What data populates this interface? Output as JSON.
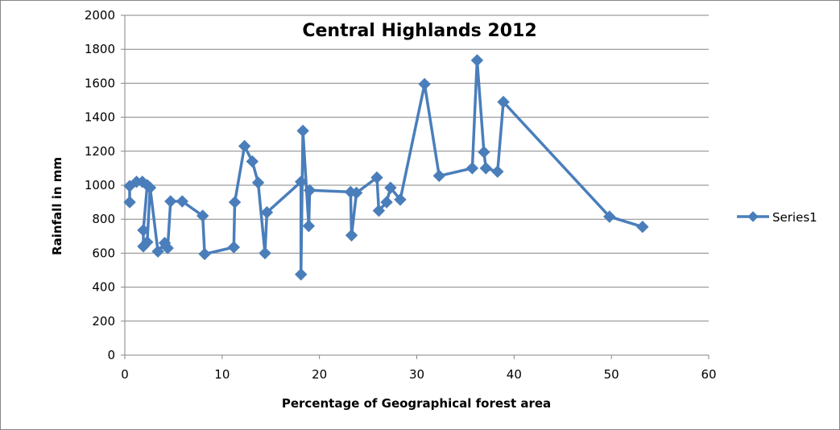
{
  "chart_data": {
    "type": "line",
    "title": "Central Highlands 2012",
    "xlabel": "Percentage of Geographical forest area",
    "ylabel": "Rainfall in mm",
    "xlim": [
      0,
      60
    ],
    "ylim": [
      0,
      2000
    ],
    "x_ticks": [
      0,
      10,
      20,
      30,
      40,
      50,
      60
    ],
    "y_ticks": [
      0,
      200,
      400,
      600,
      800,
      1000,
      1200,
      1400,
      1600,
      1800,
      2000
    ],
    "grid": "horizontal",
    "legend_position": "right",
    "color": "#4A7EBB",
    "series": [
      {
        "name": "Series1",
        "points": [
          [
            0.5,
            900
          ],
          [
            0.5,
            995
          ],
          [
            1.2,
            1020
          ],
          [
            1.8,
            1020
          ],
          [
            2.3,
            1000
          ],
          [
            1.9,
            735
          ],
          [
            1.9,
            640
          ],
          [
            2.3,
            665
          ],
          [
            2.6,
            985
          ],
          [
            3.4,
            610
          ],
          [
            4.1,
            660
          ],
          [
            4.4,
            630
          ],
          [
            4.7,
            905
          ],
          [
            5.9,
            905
          ],
          [
            8.0,
            820
          ],
          [
            8.2,
            595
          ],
          [
            11.2,
            635
          ],
          [
            11.3,
            900
          ],
          [
            12.3,
            1230
          ],
          [
            13.1,
            1140
          ],
          [
            13.7,
            1015
          ],
          [
            14.4,
            600
          ],
          [
            14.6,
            840
          ],
          [
            18.1,
            1020
          ],
          [
            18.1,
            475
          ],
          [
            18.3,
            1320
          ],
          [
            18.9,
            760
          ],
          [
            19.0,
            970
          ],
          [
            23.2,
            960
          ],
          [
            23.3,
            705
          ],
          [
            23.8,
            955
          ],
          [
            25.9,
            1045
          ],
          [
            26.1,
            850
          ],
          [
            26.9,
            900
          ],
          [
            27.3,
            985
          ],
          [
            28.3,
            915
          ],
          [
            30.8,
            1595
          ],
          [
            32.3,
            1055
          ],
          [
            35.7,
            1100
          ],
          [
            36.2,
            1735
          ],
          [
            36.9,
            1195
          ],
          [
            37.1,
            1100
          ],
          [
            38.3,
            1080
          ],
          [
            38.9,
            1490
          ],
          [
            49.8,
            815
          ],
          [
            53.2,
            755
          ]
        ]
      }
    ]
  }
}
